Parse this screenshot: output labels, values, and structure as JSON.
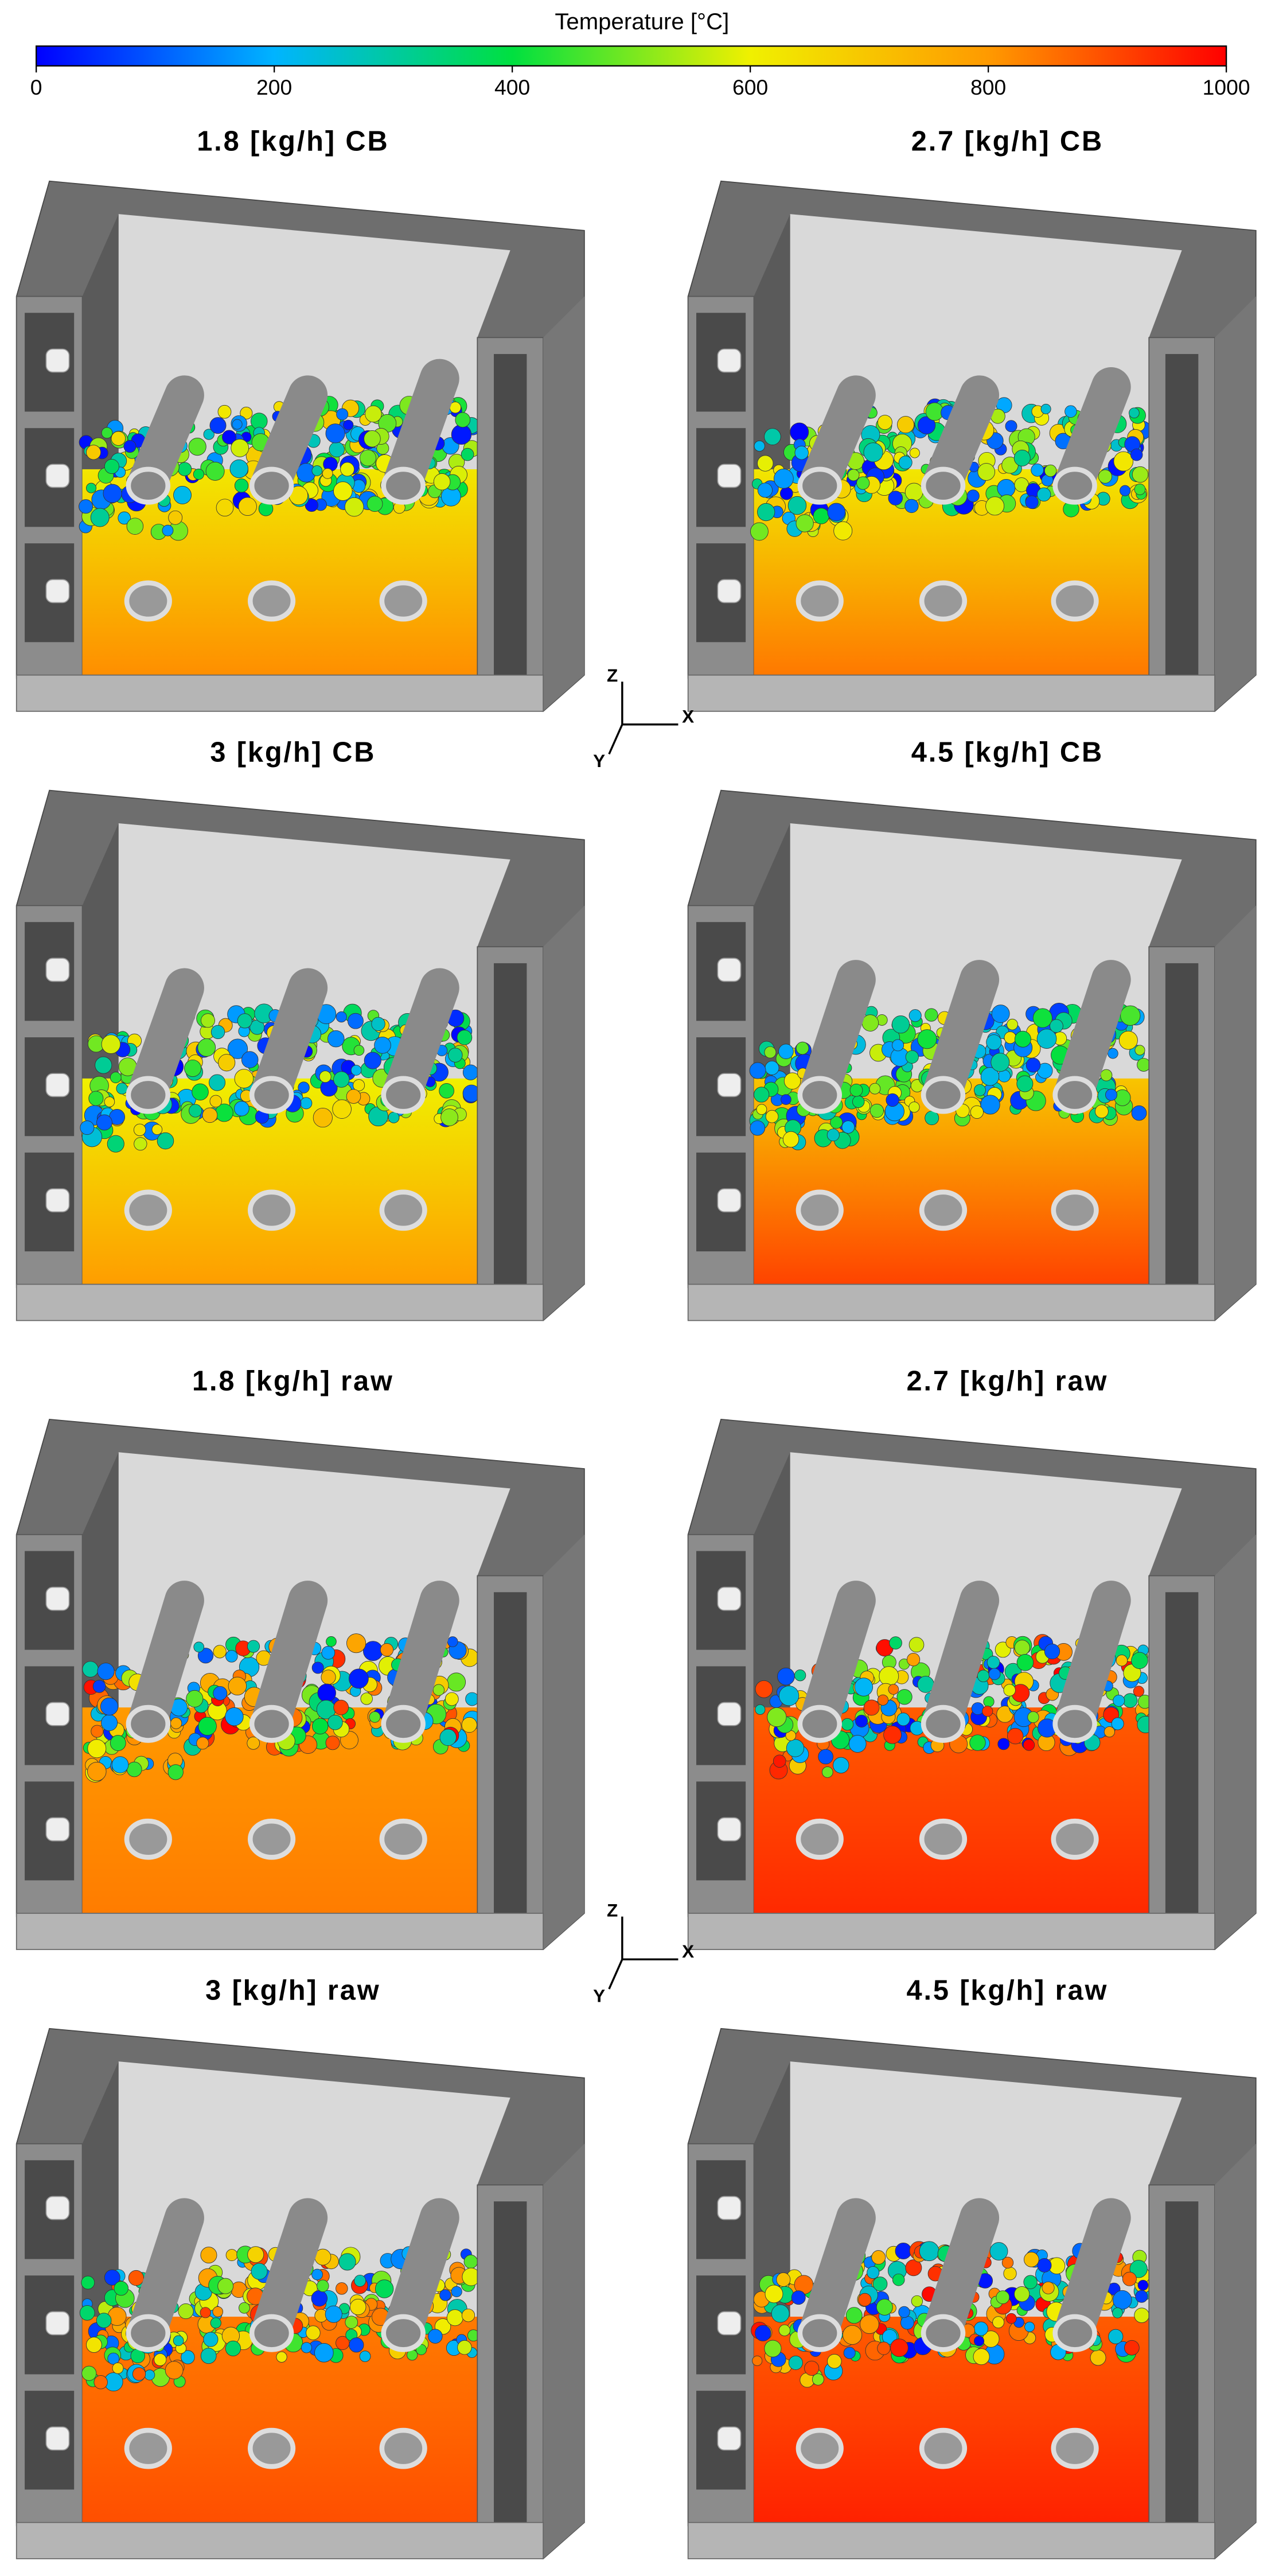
{
  "colorbar": {
    "title": "Temperature [°C]",
    "lim": [
      0,
      1000
    ],
    "ticks": [
      0,
      200,
      400,
      600,
      800,
      1000
    ]
  },
  "panels": [
    {
      "title": "1.8 [kg/h] CB"
    },
    {
      "title": "2.7 [kg/h] CB"
    },
    {
      "title": "3 [kg/h] CB"
    },
    {
      "title": "4.5 [kg/h] CB"
    },
    {
      "title": "1.8 [kg/h] raw"
    },
    {
      "title": "2.7 [kg/h] raw"
    },
    {
      "title": "3 [kg/h] raw"
    },
    {
      "title": "4.5 [kg/h] raw"
    }
  ],
  "axes": {
    "z": "Z",
    "x": "X",
    "y": "Y"
  }
}
